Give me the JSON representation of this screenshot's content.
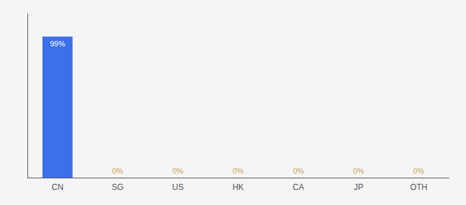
{
  "chart_data": {
    "type": "bar",
    "categories": [
      "CN",
      "SG",
      "US",
      "HK",
      "CA",
      "JP",
      "OTH"
    ],
    "values": [
      99,
      0,
      0,
      0,
      0,
      0,
      0
    ],
    "value_labels": [
      "99%",
      "0%",
      "0%",
      "0%",
      "0%",
      "0%",
      "0%"
    ],
    "data_labels": true,
    "color": "#3d6fe8",
    "ylim": [
      0,
      115
    ],
    "tick_labels": "x",
    "grid": false
  }
}
